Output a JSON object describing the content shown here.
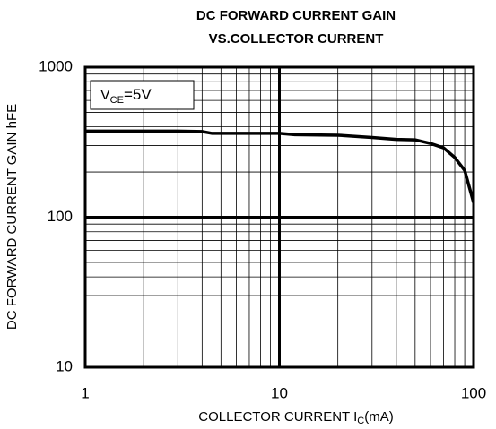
{
  "chart_data": {
    "type": "line",
    "title": [
      "DC FORWARD CURRENT GAIN",
      "VS.COLLECTOR CURRENT"
    ],
    "ylabel": "DC FORWARD CURRENT GAIN hFE",
    "xlabel": {
      "text": "COLLECTOR CURRENT I",
      "sub": "C",
      "rest": "(mA)"
    },
    "annotation": {
      "text": "V",
      "sub": "CE",
      "rest": "=5V"
    },
    "xscale": "log",
    "yscale": "log",
    "xlim": [
      1,
      100
    ],
    "ylim": [
      10,
      1000
    ],
    "xticks": [
      1,
      10,
      100
    ],
    "yticks": [
      10,
      100,
      1000
    ],
    "grid": true,
    "minor_grid": true,
    "series": [
      {
        "color": "#000000",
        "x": [
          1,
          2,
          3,
          4,
          4.5,
          6,
          10,
          12,
          20,
          30,
          40,
          50,
          60,
          70,
          80,
          90,
          100
        ],
        "values": [
          375,
          375,
          375,
          372,
          362,
          362,
          362,
          355,
          352,
          340,
          330,
          328,
          310,
          290,
          250,
          205,
          125
        ]
      }
    ]
  }
}
